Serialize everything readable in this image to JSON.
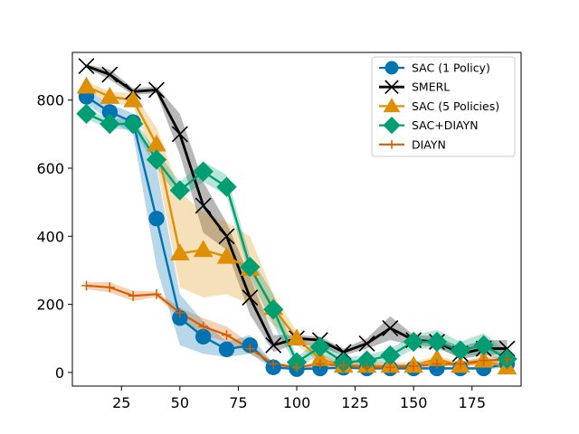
{
  "chart_data": {
    "type": "line",
    "title": "",
    "xlabel": "",
    "ylabel": "",
    "xlim": [
      4,
      196
    ],
    "ylim": [
      -40,
      940
    ],
    "xticks": [
      25,
      50,
      75,
      100,
      125,
      150,
      175
    ],
    "yticks": [
      0,
      200,
      400,
      600,
      800
    ],
    "grid": false,
    "legend_position": "top-right",
    "series": [
      {
        "name": "SAC (1 Policy)",
        "color": "#0173b2",
        "marker": "circle",
        "x": [
          10,
          20,
          30,
          40,
          50,
          60,
          70,
          80,
          90,
          100,
          110,
          120,
          130,
          140,
          150,
          160,
          170,
          180,
          190
        ],
        "values": [
          810,
          765,
          735,
          452,
          160,
          105,
          68,
          80,
          15,
          10,
          12,
          14,
          12,
          12,
          12,
          12,
          12,
          12,
          25
        ],
        "lower": [
          790,
          740,
          700,
          310,
          80,
          55,
          45,
          55,
          10,
          8,
          8,
          10,
          8,
          8,
          8,
          8,
          8,
          8,
          15
        ],
        "upper": [
          830,
          790,
          760,
          600,
          230,
          150,
          90,
          110,
          25,
          14,
          16,
          18,
          16,
          16,
          16,
          16,
          16,
          16,
          35
        ]
      },
      {
        "name": "SMERL",
        "color": "#000000",
        "marker": "x",
        "x": [
          10,
          20,
          30,
          40,
          50,
          60,
          70,
          80,
          90,
          100,
          110,
          120,
          130,
          140,
          150,
          160,
          170,
          180,
          190
        ],
        "values": [
          900,
          875,
          825,
          830,
          700,
          490,
          400,
          220,
          80,
          100,
          95,
          60,
          85,
          130,
          95,
          90,
          55,
          70,
          70
        ],
        "lower": [
          895,
          860,
          815,
          820,
          640,
          410,
          360,
          170,
          60,
          85,
          75,
          50,
          70,
          95,
          80,
          75,
          40,
          50,
          55
        ],
        "upper": [
          905,
          890,
          835,
          840,
          760,
          560,
          440,
          280,
          110,
          110,
          105,
          70,
          100,
          165,
          110,
          105,
          75,
          95,
          95
        ]
      },
      {
        "name": "SAC (5 Policies)",
        "color": "#de8f05",
        "marker": "triangle",
        "x": [
          10,
          20,
          30,
          40,
          50,
          60,
          70,
          80,
          90,
          100,
          110,
          120,
          130,
          140,
          150,
          160,
          170,
          180,
          190
        ],
        "values": [
          840,
          810,
          800,
          670,
          350,
          360,
          340,
          305,
          190,
          100,
          40,
          20,
          20,
          20,
          20,
          40,
          20,
          35,
          15
        ],
        "lower": [
          825,
          795,
          780,
          610,
          250,
          220,
          230,
          200,
          140,
          80,
          30,
          12,
          12,
          12,
          12,
          30,
          12,
          25,
          8
        ],
        "upper": [
          855,
          825,
          820,
          720,
          530,
          470,
          440,
          400,
          230,
          120,
          55,
          30,
          30,
          30,
          30,
          50,
          30,
          45,
          25
        ]
      },
      {
        "name": "SAC+DIAYN",
        "color": "#029e73",
        "marker": "diamond",
        "x": [
          10,
          20,
          30,
          40,
          50,
          60,
          70,
          80,
          90,
          100,
          110,
          120,
          130,
          140,
          150,
          160,
          170,
          180,
          190
        ],
        "values": [
          760,
          730,
          730,
          625,
          535,
          590,
          545,
          310,
          185,
          30,
          75,
          30,
          35,
          50,
          90,
          90,
          65,
          80,
          40
        ],
        "lower": [
          745,
          715,
          715,
          600,
          510,
          560,
          520,
          280,
          140,
          15,
          50,
          15,
          20,
          30,
          70,
          70,
          45,
          55,
          25
        ],
        "upper": [
          775,
          745,
          745,
          650,
          560,
          620,
          580,
          340,
          230,
          45,
          100,
          45,
          50,
          70,
          110,
          125,
          90,
          115,
          60
        ]
      },
      {
        "name": "DIAYN",
        "color": "#d55e00",
        "marker": "plus",
        "x": [
          10,
          20,
          30,
          40,
          50,
          60,
          70,
          80,
          90,
          100,
          110,
          120,
          130,
          140,
          150,
          160,
          170,
          180,
          190
        ],
        "values": [
          255,
          250,
          225,
          230,
          175,
          135,
          110,
          70,
          25,
          15,
          25,
          20,
          15,
          15,
          18,
          25,
          25,
          35,
          38
        ],
        "lower": [
          245,
          235,
          210,
          222,
          160,
          110,
          90,
          55,
          18,
          10,
          18,
          12,
          10,
          10,
          12,
          18,
          18,
          25,
          28
        ],
        "upper": [
          265,
          265,
          240,
          238,
          190,
          160,
          135,
          85,
          32,
          20,
          32,
          28,
          20,
          20,
          24,
          32,
          32,
          45,
          48
        ]
      }
    ]
  }
}
